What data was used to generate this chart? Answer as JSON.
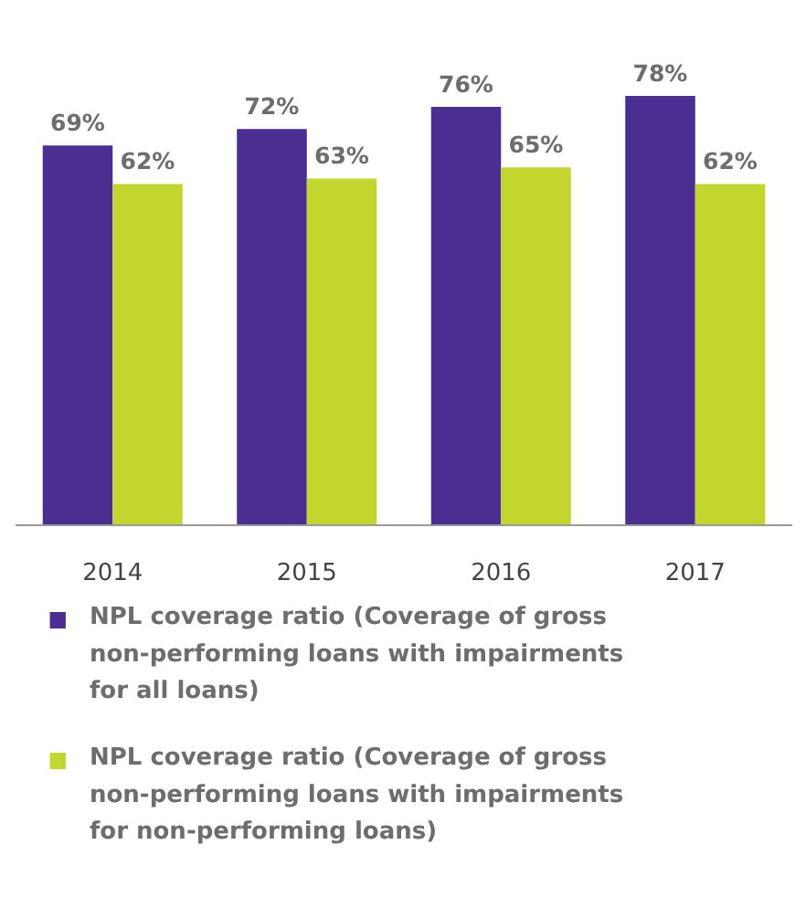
{
  "chart_data": {
    "type": "bar",
    "categories": [
      "2014",
      "2015",
      "2016",
      "2017"
    ],
    "series": [
      {
        "name": "NPL coverage ratio (Coverage of gross non-performing loans with impairments for all loans)",
        "color": "#4b2e91",
        "values": [
          69,
          72,
          76,
          78
        ],
        "value_labels": [
          "69%",
          "72%",
          "76%",
          "78%"
        ]
      },
      {
        "name": "NPL coverage ratio (Coverage of gross non-performing loans with impairments for non-performing loans)",
        "color": "#c2d62e",
        "values": [
          62,
          63,
          65,
          62
        ],
        "value_labels": [
          "62%",
          "63%",
          "65%",
          "62%"
        ]
      }
    ],
    "legend": "bottom"
  }
}
